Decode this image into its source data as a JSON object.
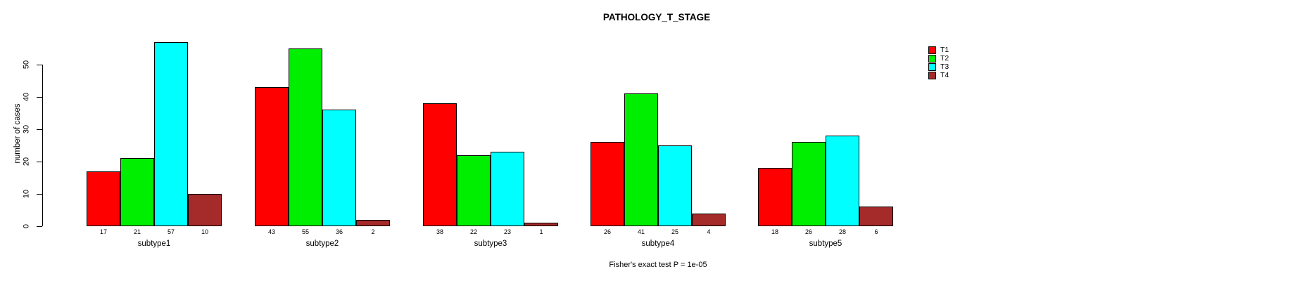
{
  "chart_data": {
    "type": "bar",
    "title": "PATHOLOGY_T_STAGE",
    "ylabel": "number of cases",
    "xlabel": "",
    "yticks": [
      0,
      10,
      20,
      30,
      40,
      50
    ],
    "ylim": [
      0,
      57
    ],
    "grid": false,
    "legend_position": "right",
    "bar_value_labels_shown": true,
    "categories": [
      "subtype1",
      "subtype2",
      "subtype3",
      "subtype4",
      "subtype5"
    ],
    "series": [
      {
        "name": "T1",
        "color": "#FF0000",
        "values": [
          17,
          43,
          38,
          26,
          18
        ]
      },
      {
        "name": "T2",
        "color": "#00EE00",
        "values": [
          21,
          55,
          22,
          41,
          26
        ]
      },
      {
        "name": "T3",
        "color": "#00FFFF",
        "values": [
          57,
          36,
          23,
          25,
          28
        ]
      },
      {
        "name": "T4",
        "color": "#A52A2A",
        "values": [
          10,
          2,
          1,
          4,
          6
        ]
      }
    ],
    "footnote": "Fisher's exact test P = 1e-05"
  }
}
